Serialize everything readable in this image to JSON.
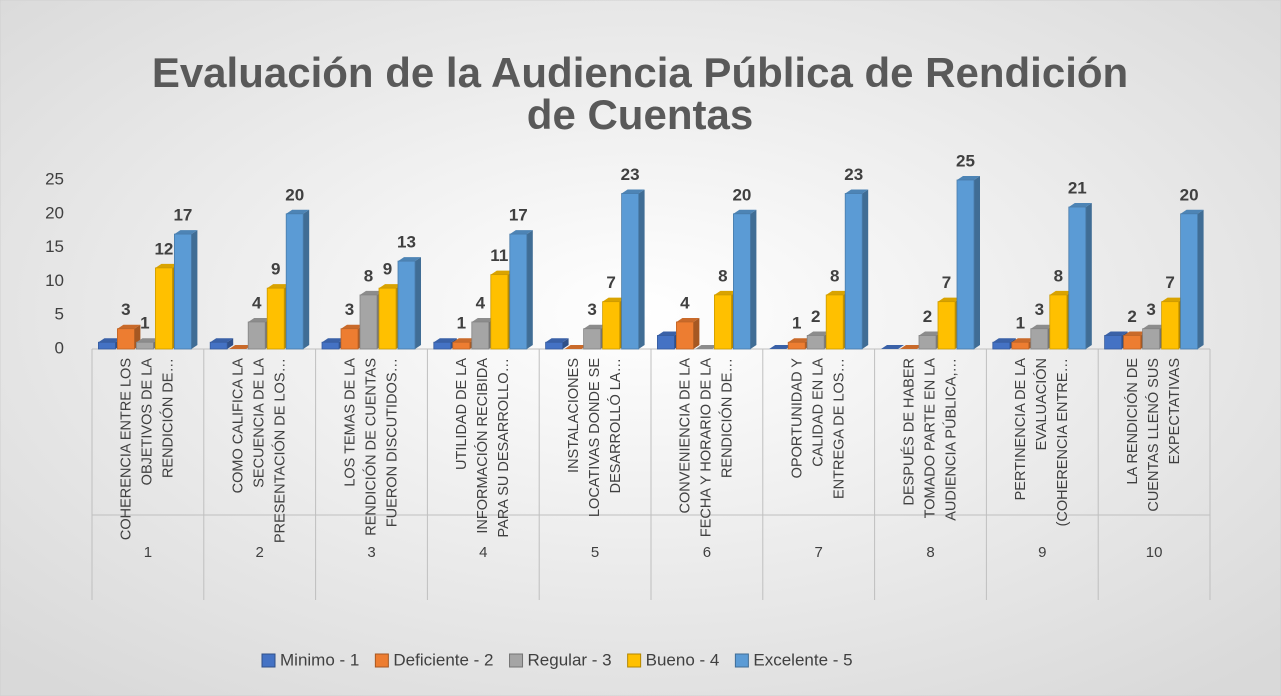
{
  "chart_data": {
    "type": "bar",
    "title": "Evaluación de la Audiencia Pública de Rendición de Cuentas",
    "categories": [
      [
        "COHERENCIA ENTRE LOS",
        "OBJETIVOS DE LA",
        "RENDICIÓN DE…"
      ],
      [
        "COMO CALIFICA LA",
        "SECUENCIA DE LA",
        "PRESENTACIÓN DE LOS…"
      ],
      [
        "LOS TEMAS DE LA",
        "RENDICIÓN DE CUENTAS",
        "FUERON DISCUTIDOS…"
      ],
      [
        "UTILIDAD DE LA",
        "INFORMACIÓN RECIBIDA",
        "PARA SU DESARROLLO…"
      ],
      [
        "INSTALACIONES",
        "LOCATIVAS DONDE SE",
        "DESARROLLÓ LA…"
      ],
      [
        "CONVENIENCIA DE LA",
        "FECHA Y HORARIO DE LA",
        "RENDICIÓN DE…"
      ],
      [
        "OPORTUNIDAD Y",
        "CALIDAD EN LA",
        "ENTREGA DE LOS…"
      ],
      [
        "DESPUÉS DE HABER",
        "TOMADO PARTE EN LA",
        "AUDIENCIA PÚBLICA,…"
      ],
      [
        "PERTINENCIA DE LA",
        "EVALUACIÓN",
        "(COHERENCIA ENTRE…"
      ],
      [
        "LA RENDICIÓN DE",
        "CUENTAS LLENÓ SUS",
        "EXPECTATIVAS"
      ]
    ],
    "category_groups": [
      "1",
      "2",
      "3",
      "4",
      "5",
      "6",
      "7",
      "8",
      "9",
      "10"
    ],
    "series": [
      {
        "name": "Minimo - 1",
        "color": "#4472c4",
        "values": [
          1,
          1,
          1,
          1,
          1,
          2,
          0,
          0,
          1,
          2
        ],
        "value_labels": [
          null,
          null,
          null,
          null,
          null,
          null,
          null,
          null,
          null,
          null
        ]
      },
      {
        "name": "Deficiente - 2",
        "color": "#ed7d31",
        "values": [
          3,
          0,
          3,
          1,
          0,
          4,
          1,
          0,
          1,
          2
        ],
        "value_labels": [
          "3",
          null,
          "3",
          "1",
          null,
          "4",
          "1",
          null,
          "1",
          "2"
        ]
      },
      {
        "name": "Regular - 3",
        "color": "#a5a5a5",
        "values": [
          1,
          4,
          8,
          4,
          3,
          0,
          2,
          2,
          3,
          3
        ],
        "value_labels": [
          "1",
          "4",
          "8",
          "4",
          "3",
          null,
          "2",
          "2",
          "3",
          "3"
        ]
      },
      {
        "name": "Bueno - 4",
        "color": "#ffc000",
        "values": [
          12,
          9,
          9,
          11,
          7,
          8,
          8,
          7,
          8,
          7
        ],
        "value_labels": [
          "12",
          "9",
          "9",
          "11",
          "7",
          "8",
          "8",
          "7",
          "8",
          "7"
        ]
      },
      {
        "name": "Excelente - 5",
        "color": "#5b9bd5",
        "values": [
          17,
          20,
          13,
          17,
          23,
          20,
          23,
          25,
          21,
          20
        ],
        "value_labels": [
          "17",
          "20",
          "13",
          "17",
          "23",
          "20",
          "23",
          "25",
          "21",
          "20"
        ]
      }
    ],
    "ylim": [
      0,
      25
    ],
    "yticks": [
      0,
      5,
      10,
      15,
      20,
      25
    ],
    "grid": false,
    "legend": "bottom"
  }
}
